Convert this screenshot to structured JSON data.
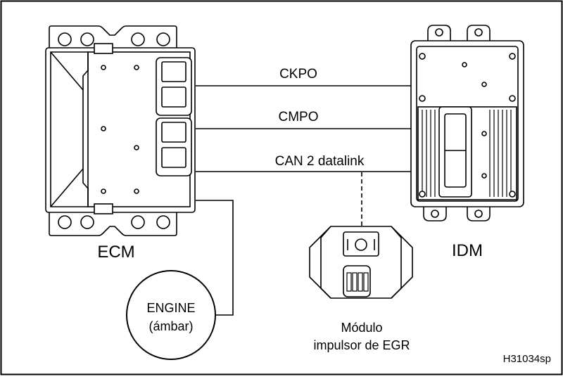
{
  "components": {
    "ecm": {
      "label": "ECM"
    },
    "idm": {
      "label": "IDM"
    },
    "egr": {
      "line1": "Módulo",
      "line2": "impulsor de EGR"
    },
    "lamp": {
      "line1": "ENGINE",
      "line2": "(ámbar)"
    }
  },
  "wires": [
    {
      "label": "CKPO"
    },
    {
      "label": "CMPO"
    },
    {
      "label": "CAN 2 datalink"
    }
  ],
  "figure_code": "H31034sp"
}
